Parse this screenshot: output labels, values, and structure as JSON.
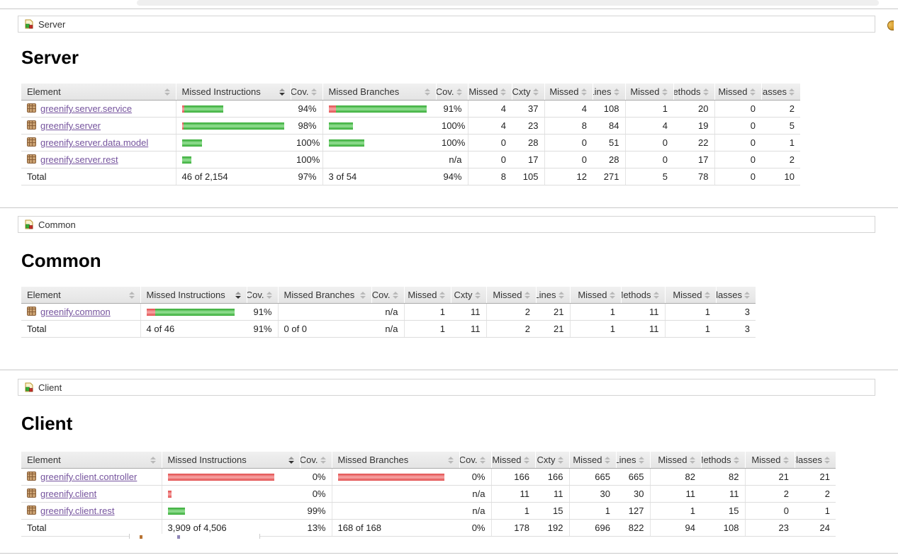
{
  "columns_note": "coverage report tables",
  "sections": [
    {
      "breadcrumb": "Server",
      "heading": "Server",
      "columns": [
        "Element",
        "Missed Instructions",
        "Cov.",
        "Missed Branches",
        "Cov.",
        "Missed",
        "Cxty",
        "Missed",
        "Lines",
        "Missed",
        "Methods",
        "Missed",
        "Classes"
      ],
      "sorted_column_index": 1,
      "sort_direction": "desc",
      "rows": [
        {
          "element": "greenify.server.service",
          "ins_bar": {
            "red": 3,
            "green": 55
          },
          "ins_cov": "94%",
          "br_bar": {
            "red": 10,
            "green": 128
          },
          "br_cov": "91%",
          "cells": [
            "4",
            "37",
            "4",
            "108",
            "1",
            "20",
            "0",
            "2"
          ]
        },
        {
          "element": "greenify.server",
          "ins_bar": {
            "red": 2,
            "green": 142
          },
          "ins_cov": "98%",
          "br_bar": {
            "red": 0,
            "green": 34
          },
          "br_cov": "100%",
          "cells": [
            "4",
            "23",
            "8",
            "84",
            "4",
            "19",
            "0",
            "5"
          ]
        },
        {
          "element": "greenify.server.data.model",
          "ins_bar": {
            "red": 0,
            "green": 28
          },
          "ins_cov": "100%",
          "br_bar": {
            "red": 0,
            "green": 50
          },
          "br_cov": "100%",
          "cells": [
            "0",
            "28",
            "0",
            "51",
            "0",
            "22",
            "0",
            "1"
          ]
        },
        {
          "element": "greenify.server.rest",
          "ins_bar": {
            "red": 0,
            "green": 13
          },
          "ins_cov": "100%",
          "br_bar": {
            "red": 0,
            "green": 0
          },
          "br_cov": "n/a",
          "cells": [
            "0",
            "17",
            "0",
            "28",
            "0",
            "17",
            "0",
            "2"
          ]
        }
      ],
      "total": {
        "label": "Total",
        "instructions": "46 of 2,154",
        "ins_cov": "97%",
        "branches": "3 of 54",
        "br_cov": "94%",
        "cells": [
          "8",
          "105",
          "12",
          "271",
          "5",
          "78",
          "0",
          "10"
        ]
      }
    },
    {
      "breadcrumb": "Common",
      "heading": "Common",
      "columns": [
        "Element",
        "Missed Instructions",
        "Cov.",
        "Missed Branches",
        "Cov.",
        "Missed",
        "Cxty",
        "Missed",
        "Lines",
        "Missed",
        "Methods",
        "Missed",
        "Classes"
      ],
      "sorted_column_index": 1,
      "sort_direction": "desc",
      "rows": [
        {
          "element": "greenify.common",
          "ins_bar": {
            "red": 12,
            "green": 112
          },
          "ins_cov": "91%",
          "br_bar": {
            "red": 0,
            "green": 0
          },
          "br_cov": "n/a",
          "cells": [
            "1",
            "11",
            "2",
            "21",
            "1",
            "11",
            "1",
            "3"
          ]
        }
      ],
      "total": {
        "label": "Total",
        "instructions": "4 of 46",
        "ins_cov": "91%",
        "branches": "0 of 0",
        "br_cov": "n/a",
        "cells": [
          "1",
          "11",
          "2",
          "21",
          "1",
          "11",
          "1",
          "3"
        ]
      }
    },
    {
      "breadcrumb": "Client",
      "heading": "Client",
      "columns": [
        "Element",
        "Missed Instructions",
        "Cov.",
        "Missed Branches",
        "Cov.",
        "Missed",
        "Cxty",
        "Missed",
        "Lines",
        "Missed",
        "Methods",
        "Missed",
        "Classes"
      ],
      "sorted_column_index": 1,
      "sort_direction": "desc",
      "rows": [
        {
          "element": "greenify.client.controller",
          "ins_bar": {
            "red": 150,
            "green": 0
          },
          "ins_cov": "0%",
          "br_bar": {
            "red": 150,
            "green": 0
          },
          "br_cov": "0%",
          "cells": [
            "166",
            "166",
            "665",
            "665",
            "82",
            "82",
            "21",
            "21"
          ]
        },
        {
          "element": "greenify.client",
          "ins_bar": {
            "red": 5,
            "green": 0
          },
          "ins_cov": "0%",
          "br_bar": {
            "red": 0,
            "green": 0
          },
          "br_cov": "n/a",
          "cells": [
            "11",
            "11",
            "30",
            "30",
            "11",
            "11",
            "2",
            "2"
          ]
        },
        {
          "element": "greenify.client.rest",
          "ins_bar": {
            "red": 0,
            "green": 24
          },
          "ins_cov": "99%",
          "br_bar": {
            "red": 0,
            "green": 0
          },
          "br_cov": "n/a",
          "cells": [
            "1",
            "15",
            "1",
            "127",
            "1",
            "15",
            "0",
            "1"
          ]
        }
      ],
      "total": {
        "label": "Total",
        "instructions": "3,909 of 4,506",
        "ins_cov": "13%",
        "branches": "168 of 168",
        "br_cov": "0%",
        "cells": [
          "178",
          "192",
          "696",
          "822",
          "94",
          "108",
          "23",
          "24"
        ]
      }
    }
  ]
}
